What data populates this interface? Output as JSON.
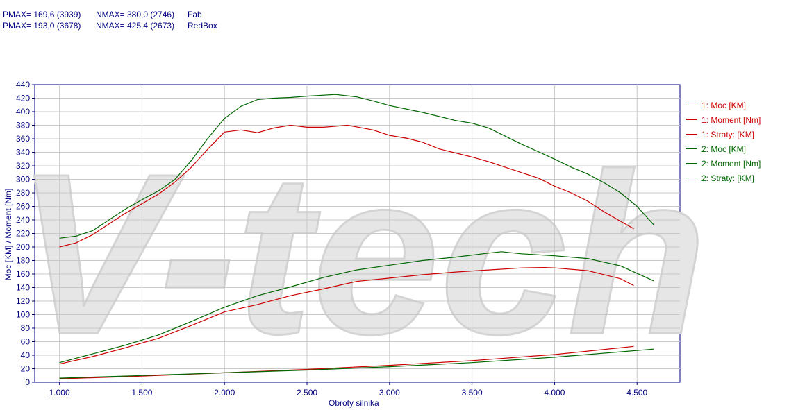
{
  "header": {
    "rows": [
      {
        "pmax": "PMAX= 169,6 (3939)",
        "nmax": "NMAX= 380,0 (2746)",
        "name": "Fab"
      },
      {
        "pmax": "PMAX= 193,0 (3678)",
        "nmax": "NMAX= 425,4 (2673)",
        "name": "RedBox"
      }
    ]
  },
  "colors": {
    "run1": "#cc0000",
    "run2": "#006600",
    "axis": "#000080",
    "grid": "#c8c8c8",
    "watermark": "#e6e6e6"
  },
  "watermark": "V-tech",
  "chart_data": {
    "type": "line",
    "xlabel": "Obroty silnika",
    "ylabel": "Moc [KM] / Moment [Nm]",
    "xlim": [
      850,
      4760
    ],
    "ylim": [
      0,
      440
    ],
    "xticks": [
      1000,
      1500,
      2000,
      2500,
      3000,
      3500,
      4000,
      4500
    ],
    "xtick_labels": [
      "1.000",
      "1.500",
      "2.000",
      "2.500",
      "3.000",
      "3.500",
      "4.000",
      "4.500"
    ],
    "yticks": [
      0,
      20,
      40,
      60,
      80,
      100,
      120,
      140,
      160,
      180,
      200,
      220,
      240,
      260,
      280,
      300,
      320,
      340,
      360,
      380,
      400,
      420,
      440
    ],
    "grid": true,
    "legend_position": "right",
    "series": [
      {
        "name": "1: Moc [KM]",
        "color": "#cc0000",
        "x": [
          1000,
          1200,
          1400,
          1600,
          1800,
          2000,
          2200,
          2400,
          2600,
          2800,
          3000,
          3200,
          3400,
          3600,
          3800,
          3939,
          4000,
          4200,
          4400,
          4480
        ],
        "y": [
          27,
          38,
          51,
          65,
          84,
          104,
          115,
          128,
          138,
          149,
          154,
          159,
          163,
          166,
          169,
          169.6,
          169,
          165,
          153,
          143
        ]
      },
      {
        "name": "1: Moment [Nm]",
        "color": "#cc0000",
        "x": [
          1000,
          1100,
          1200,
          1400,
          1600,
          1700,
          1800,
          1900,
          2000,
          2100,
          2200,
          2300,
          2400,
          2500,
          2600,
          2746,
          2900,
          3000,
          3100,
          3200,
          3300,
          3400,
          3500,
          3600,
          3700,
          3800,
          3900,
          4000,
          4100,
          4200,
          4300,
          4400,
          4480
        ],
        "y": [
          200,
          206,
          218,
          250,
          278,
          296,
          318,
          345,
          370,
          373,
          369,
          376,
          380,
          377,
          377,
          380,
          373,
          365,
          361,
          355,
          345,
          339,
          333,
          326,
          318,
          310,
          302,
          290,
          280,
          268,
          252,
          238,
          227
        ]
      },
      {
        "name": "1: Straty: [KM]",
        "color": "#cc0000",
        "x": [
          1000,
          1500,
          2000,
          2500,
          3000,
          3500,
          4000,
          4480
        ],
        "y": [
          5,
          9,
          14,
          19,
          25,
          32,
          41,
          53
        ]
      },
      {
        "name": "2: Moc [KM]",
        "color": "#006600",
        "x": [
          1000,
          1200,
          1400,
          1600,
          1800,
          2000,
          2200,
          2400,
          2600,
          2800,
          3000,
          3200,
          3400,
          3600,
          3678,
          3800,
          4000,
          4200,
          4400,
          4600
        ],
        "y": [
          29,
          42,
          55,
          70,
          90,
          111,
          128,
          141,
          155,
          166,
          173,
          180,
          185,
          191,
          193,
          190,
          187,
          183,
          172,
          150
        ]
      },
      {
        "name": "2: Moment [Nm]",
        "color": "#006600",
        "x": [
          1000,
          1100,
          1200,
          1300,
          1400,
          1500,
          1600,
          1700,
          1800,
          1900,
          2000,
          2100,
          2200,
          2300,
          2400,
          2500,
          2673,
          2800,
          2900,
          3000,
          3200,
          3400,
          3500,
          3600,
          3700,
          3800,
          3900,
          4000,
          4100,
          4200,
          4300,
          4400,
          4500,
          4600
        ],
        "y": [
          213,
          216,
          224,
          240,
          256,
          270,
          283,
          300,
          328,
          361,
          390,
          408,
          418,
          420,
          421,
          423,
          425.4,
          422,
          416,
          409,
          399,
          387,
          383,
          376,
          364,
          352,
          341,
          330,
          318,
          308,
          295,
          280,
          260,
          233
        ]
      },
      {
        "name": "2: Straty: [KM]",
        "color": "#006600",
        "x": [
          1000,
          1500,
          2000,
          2500,
          3000,
          3500,
          4000,
          4600
        ],
        "y": [
          6,
          10,
          14,
          18,
          23,
          29,
          37,
          49
        ]
      }
    ]
  }
}
